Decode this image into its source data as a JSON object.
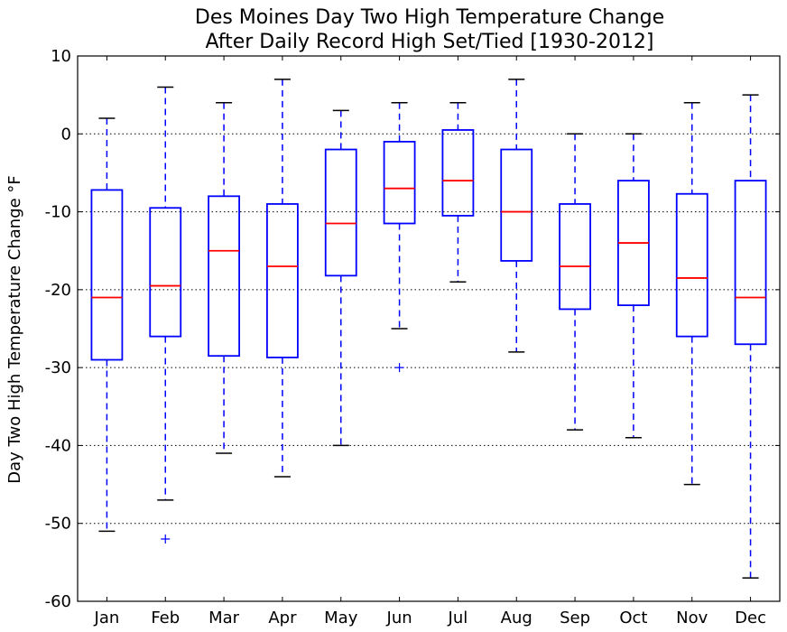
{
  "chart_data": {
    "type": "box",
    "title": "Des Moines Day Two High Temperature Change",
    "subtitle": "After Daily Record High Set/Tied [1930-2012]",
    "xlabel": "",
    "ylabel": "Day Two High Temperature Change °F",
    "ylim": [
      -60,
      10
    ],
    "yticks": [
      10,
      0,
      -10,
      -20,
      -30,
      -40,
      -50,
      -60
    ],
    "grid": "horizontal dotted",
    "categories": [
      "Jan",
      "Feb",
      "Mar",
      "Apr",
      "May",
      "Jun",
      "Jul",
      "Aug",
      "Sep",
      "Oct",
      "Nov",
      "Dec"
    ],
    "boxes": [
      {
        "whisker_low": -51,
        "q1": -29,
        "median": -21,
        "q3": -7.2,
        "whisker_high": 2,
        "outliers": []
      },
      {
        "whisker_low": -47,
        "q1": -26,
        "median": -19.5,
        "q3": -9.5,
        "whisker_high": 6,
        "outliers": [
          -52
        ]
      },
      {
        "whisker_low": -41,
        "q1": -28.5,
        "median": -15,
        "q3": -8,
        "whisker_high": 4,
        "outliers": []
      },
      {
        "whisker_low": -44,
        "q1": -28.7,
        "median": -17,
        "q3": -9,
        "whisker_high": 7,
        "outliers": []
      },
      {
        "whisker_low": -40,
        "q1": -18.2,
        "median": -11.5,
        "q3": -2,
        "whisker_high": 3,
        "outliers": []
      },
      {
        "whisker_low": -25,
        "q1": -11.5,
        "median": -7,
        "q3": -1,
        "whisker_high": 4,
        "outliers": [
          -30
        ]
      },
      {
        "whisker_low": -19,
        "q1": -10.5,
        "median": -6,
        "q3": 0.5,
        "whisker_high": 4,
        "outliers": []
      },
      {
        "whisker_low": -28,
        "q1": -16.3,
        "median": -10,
        "q3": -2,
        "whisker_high": 7,
        "outliers": []
      },
      {
        "whisker_low": -38,
        "q1": -22.5,
        "median": -17,
        "q3": -9,
        "whisker_high": 0,
        "outliers": []
      },
      {
        "whisker_low": -39,
        "q1": -22,
        "median": -14,
        "q3": -6,
        "whisker_high": 0,
        "outliers": []
      },
      {
        "whisker_low": -45,
        "q1": -26,
        "median": -18.5,
        "q3": -7.7,
        "whisker_high": 4,
        "outliers": []
      },
      {
        "whisker_low": -57,
        "q1": -27,
        "median": -21,
        "q3": -6,
        "whisker_high": 5,
        "outliers": []
      }
    ],
    "colors": {
      "box": "#0000ff",
      "median": "#ff0000",
      "cap": "#000000",
      "grid": "#000000",
      "outlier": "#0000ff"
    }
  }
}
